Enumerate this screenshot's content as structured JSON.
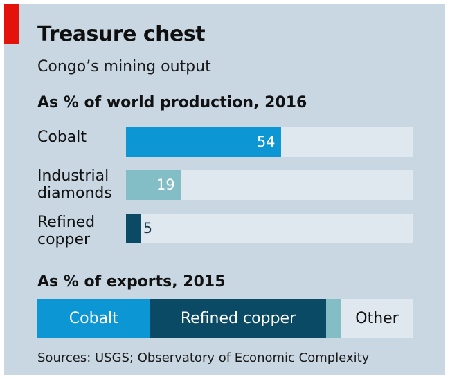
{
  "title": "Treasure chest",
  "subtitle": "Congo’s mining output",
  "source": "Sources: USGS; Observatory of Economic Complexity",
  "colors": {
    "cobalt": "#0d96d4",
    "industrial_diamonds": "#83bdc6",
    "refined_copper": "#0b4a64",
    "track": "#dfe8ee",
    "background": "#c8d7e2",
    "accent_red": "#e3120b"
  },
  "chart_data": [
    {
      "type": "bar",
      "orientation": "horizontal",
      "title": "As % of world production, 2016",
      "categories": [
        "Cobalt",
        "Industrial diamonds",
        "Refined copper"
      ],
      "category_lines": [
        [
          "Cobalt"
        ],
        [
          "Industrial",
          "diamonds"
        ],
        [
          "Refined",
          "copper"
        ]
      ],
      "values": [
        54,
        19,
        5
      ],
      "xlim": [
        0,
        100
      ],
      "colors": [
        "#0d96d4",
        "#83bdc6",
        "#0b4a64"
      ],
      "grid": false
    },
    {
      "type": "bar",
      "orientation": "horizontal",
      "stacked": true,
      "title": "As % of exports, 2015",
      "segments": [
        {
          "label": "Cobalt",
          "value": 30,
          "color": "#0d96d4",
          "text_color": "#ffffff"
        },
        {
          "label": "Refined copper",
          "value": 47,
          "color": "#0b4a64",
          "text_color": "#ffffff"
        },
        {
          "label": "",
          "value": 4,
          "color": "#83bdc6",
          "text_color": "#ffffff"
        },
        {
          "label": "Other",
          "value": 19,
          "color": "#dfe8ee",
          "text_color": "#111111"
        }
      ],
      "total": 100
    }
  ]
}
